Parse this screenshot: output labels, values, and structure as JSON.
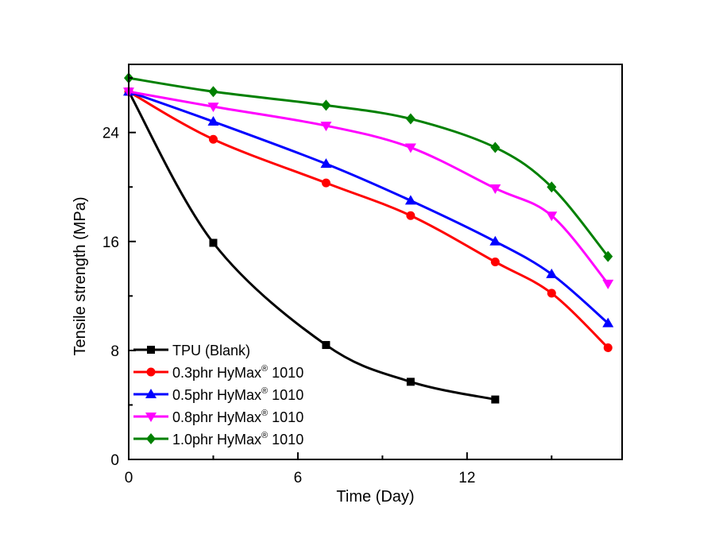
{
  "chart_data": {
    "type": "line",
    "title": "",
    "xlabel": "Time (Day)",
    "ylabel": "Tensile strength (MPa)",
    "xlim": [
      0,
      17.5
    ],
    "ylim": [
      0,
      29
    ],
    "xticks": [
      0,
      6,
      12
    ],
    "yticks": [
      0,
      8,
      16,
      24
    ],
    "grid": false,
    "legend_position": "bottom-left",
    "series": [
      {
        "name": "TPU (Blank)",
        "color": "#000000",
        "marker": "square",
        "x": [
          0,
          3,
          7,
          10,
          13
        ],
        "y": [
          27.0,
          15.9,
          8.4,
          5.7,
          4.4
        ]
      },
      {
        "name": "0.3phr HyMax® 1010",
        "color": "#ff0000",
        "marker": "circle",
        "x": [
          0,
          3,
          7,
          10,
          13,
          15,
          17
        ],
        "y": [
          27.0,
          23.5,
          20.3,
          17.9,
          14.5,
          12.2,
          8.2
        ]
      },
      {
        "name": "0.5phr HyMax® 1010",
        "color": "#0000ff",
        "marker": "triangle-up",
        "x": [
          0,
          3,
          7,
          10,
          13,
          15,
          17
        ],
        "y": [
          27.0,
          24.8,
          21.7,
          19.0,
          16.0,
          13.6,
          10.0
        ]
      },
      {
        "name": "0.8phr HyMax® 1010",
        "color": "#ff00ff",
        "marker": "triangle-down",
        "x": [
          0,
          3,
          7,
          10,
          13,
          15,
          17
        ],
        "y": [
          27.0,
          25.9,
          24.5,
          22.9,
          19.9,
          17.9,
          12.9
        ]
      },
      {
        "name": "1.0phr HyMax® 1010",
        "color": "#008000",
        "marker": "diamond",
        "x": [
          0,
          3,
          7,
          10,
          13,
          15,
          17
        ],
        "y": [
          28.0,
          27.0,
          26.0,
          25.0,
          22.9,
          20.0,
          14.9
        ]
      }
    ]
  }
}
